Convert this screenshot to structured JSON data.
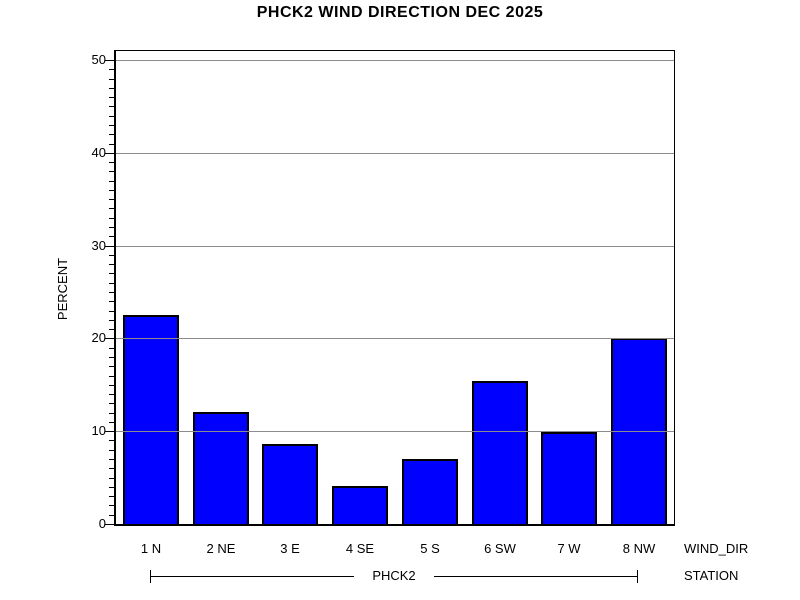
{
  "title": "PHCK2 WIND DIRECTION DEC 2025",
  "chart_data": {
    "type": "bar",
    "title": "PHCK2 WIND DIRECTION DEC 2025",
    "categories": [
      "1 N",
      "2 NE",
      "3 E",
      "4 SE",
      "5 S",
      "6 SW",
      "7 W",
      "8 NW"
    ],
    "values": [
      22.5,
      12.1,
      8.6,
      4.1,
      7.0,
      15.4,
      9.9,
      20.0
    ],
    "xlabel": "WIND_DIR",
    "ylabel": "PERCENT",
    "ylim": [
      0,
      50
    ],
    "yticks": [
      0,
      10,
      20,
      30,
      40,
      50
    ],
    "minor_tick_step": 1,
    "grid": "horizontal",
    "legend": "none",
    "group_label": "PHCK2",
    "group_axis_label": "STATION",
    "colors": {
      "bar_fill": "#0000ff",
      "bar_border": "#000000",
      "gridline": "#8c8c8c",
      "axis": "#000000",
      "background": "#ffffff",
      "text": "#000000"
    }
  }
}
